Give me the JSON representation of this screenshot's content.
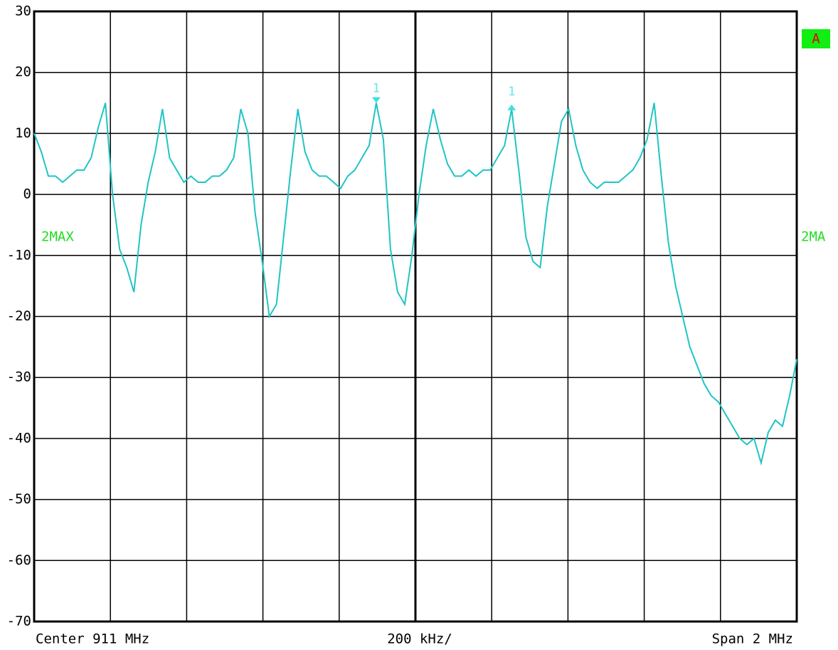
{
  "chart_data": {
    "type": "line",
    "annotations": {
      "left_trace": "2MAX",
      "right_trace": "2MA",
      "trace_flag": "A",
      "center": "Center 911 MHz",
      "per_division": "200 kHz/",
      "span": "Span 2 MHz"
    },
    "series": [
      {
        "color": "#20c4c4",
        "values": [
          10,
          7,
          3,
          3,
          2,
          3,
          4,
          4,
          6,
          11,
          15,
          0,
          -9,
          -12,
          -16,
          -5,
          2,
          7,
          14,
          6,
          4,
          2,
          3,
          2,
          2,
          3,
          3,
          4,
          6,
          14,
          10,
          -3,
          -11,
          -20,
          -18,
          -7,
          4,
          14,
          7,
          4,
          3,
          3,
          2,
          1,
          3,
          4,
          6,
          8,
          15,
          9,
          -9,
          -16,
          -18,
          -10,
          0,
          8,
          14,
          9,
          5,
          3,
          3,
          4,
          3,
          4,
          4,
          6,
          8,
          14,
          4,
          -7,
          -11,
          -12,
          -2,
          5,
          12,
          14,
          8,
          4,
          2,
          1,
          2,
          2,
          2,
          3,
          4,
          6,
          9,
          15,
          3,
          -8,
          -15,
          -20,
          -25,
          -28,
          -31,
          -33,
          -34,
          -36,
          -38,
          -40,
          -41,
          -40,
          -44,
          -39,
          -37,
          -38,
          -33,
          -27
        ]
      }
    ],
    "markers": [
      {
        "label": "1",
        "value": 15
      },
      {
        "label": "1",
        "value": 14.5
      }
    ],
    "ylim": [
      -70,
      30
    ],
    "yticks": [
      30,
      20,
      10,
      0,
      -10,
      -20,
      -30,
      -40,
      -50,
      -60,
      -70
    ],
    "grid": true
  }
}
